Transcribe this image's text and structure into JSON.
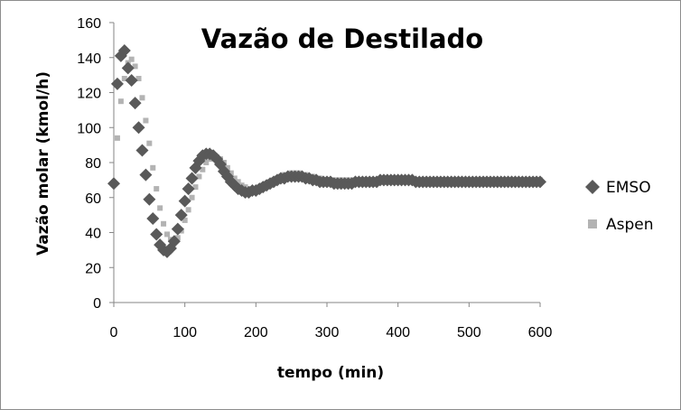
{
  "chart_data": {
    "type": "scatter",
    "title": "Vazão de Destilado",
    "xlabel": "tempo (min)",
    "ylabel": "Vazão molar  (kmol/h)",
    "xlim": [
      0,
      600
    ],
    "ylim": [
      0,
      160
    ],
    "x_ticks": [
      "0",
      "100",
      "200",
      "300",
      "400",
      "500",
      "600"
    ],
    "y_ticks": [
      "0",
      "20",
      "40",
      "60",
      "80",
      "100",
      "120",
      "140",
      "160"
    ],
    "grid": false,
    "legend_position": "right",
    "series": [
      {
        "name": "EMSO",
        "marker": "diamond",
        "color": "#595959",
        "x": [
          0,
          5,
          10,
          15,
          20,
          25,
          30,
          35,
          40,
          45,
          50,
          55,
          60,
          65,
          70,
          75,
          80,
          85,
          90,
          95,
          100,
          105,
          110,
          115,
          120,
          125,
          130,
          135,
          140,
          145,
          150,
          155,
          160,
          165,
          170,
          175,
          180,
          185,
          190,
          195,
          200,
          205,
          210,
          215,
          220,
          225,
          230,
          235,
          240,
          245,
          250,
          255,
          260,
          265,
          270,
          275,
          280,
          285,
          290,
          295,
          300,
          305,
          310,
          315,
          320,
          325,
          330,
          335,
          340,
          345,
          350,
          355,
          360,
          365,
          370,
          375,
          380,
          385,
          390,
          395,
          400,
          405,
          410,
          415,
          420,
          425,
          430,
          435,
          440,
          445,
          450,
          455,
          460,
          465,
          470,
          475,
          480,
          485,
          490,
          495,
          500,
          505,
          510,
          515,
          520,
          525,
          530,
          535,
          540,
          545,
          550,
          555,
          560,
          565,
          570,
          575,
          580,
          585,
          590,
          595,
          600
        ],
        "y": [
          68,
          125,
          141,
          144,
          134,
          127,
          114,
          100,
          87,
          73,
          59,
          48,
          39,
          33,
          30,
          29,
          31,
          35,
          42,
          50,
          58,
          65,
          71,
          77,
          81,
          84,
          85,
          85,
          84,
          82,
          79,
          75,
          72,
          69,
          67,
          65,
          64,
          63,
          63,
          64,
          64,
          65,
          66,
          67,
          68,
          69,
          70,
          71,
          71,
          72,
          72,
          72,
          72,
          72,
          71,
          71,
          70,
          70,
          69,
          69,
          69,
          69,
          68,
          68,
          68,
          68,
          68,
          68,
          69,
          69,
          69,
          69,
          69,
          69,
          69,
          70,
          70,
          70,
          70,
          70,
          70,
          70,
          70,
          70,
          70,
          69,
          69,
          69,
          69,
          69,
          69,
          69,
          69,
          69,
          69,
          69,
          69,
          69,
          69,
          69,
          69,
          69,
          69,
          69,
          69,
          69,
          69,
          69,
          69,
          69,
          69,
          69,
          69,
          69,
          69,
          69,
          69,
          69,
          69,
          69,
          69
        ]
      },
      {
        "name": "Aspen",
        "marker": "square",
        "color": "#b3b3b3",
        "x": [
          0,
          5,
          10,
          15,
          20,
          25,
          30,
          35,
          40,
          45,
          50,
          55,
          60,
          65,
          70,
          75,
          80,
          85,
          90,
          95,
          100,
          105,
          110,
          115,
          120,
          125,
          130,
          135,
          140,
          145,
          150,
          155,
          160,
          165,
          170,
          175,
          180,
          185,
          190,
          195,
          200,
          205,
          210,
          215,
          220,
          225,
          230,
          235,
          240,
          245,
          250,
          255,
          260,
          265,
          270,
          275,
          280,
          285,
          290,
          295,
          300,
          305,
          310,
          315,
          320,
          325,
          330,
          335,
          340,
          345,
          350,
          355,
          360,
          365,
          370,
          375,
          380,
          385,
          390,
          395,
          400,
          405,
          410,
          415,
          420,
          425,
          430,
          435,
          440,
          445,
          450,
          455,
          460,
          465,
          470,
          475,
          480,
          485,
          490,
          495,
          500,
          505,
          510,
          515,
          520,
          525,
          530,
          535,
          540,
          545,
          550,
          555,
          560,
          565,
          570,
          575,
          580,
          585,
          590,
          595,
          600
        ],
        "y": [
          68,
          94,
          115,
          128,
          137,
          139,
          135,
          128,
          117,
          104,
          91,
          77,
          65,
          54,
          45,
          39,
          36,
          35,
          37,
          41,
          47,
          53,
          60,
          66,
          72,
          76,
          80,
          82,
          83,
          83,
          82,
          80,
          77,
          74,
          71,
          69,
          67,
          66,
          65,
          65,
          65,
          66,
          67,
          68,
          69,
          70,
          71,
          72,
          73,
          73,
          74,
          74,
          74,
          73,
          73,
          72,
          72,
          71,
          71,
          70,
          70,
          70,
          70,
          70,
          70,
          70,
          70,
          70,
          70,
          70,
          70,
          70,
          70,
          70,
          70,
          70,
          70,
          70,
          70,
          70,
          70,
          70,
          70,
          70,
          70,
          70,
          70,
          70,
          70,
          70,
          70,
          70,
          70,
          70,
          70,
          70,
          70,
          70,
          70,
          70,
          70,
          70,
          70,
          70,
          70,
          70,
          70,
          70,
          70,
          70,
          70,
          70,
          70,
          70,
          70,
          70,
          70,
          70,
          70,
          70,
          70
        ]
      }
    ]
  }
}
